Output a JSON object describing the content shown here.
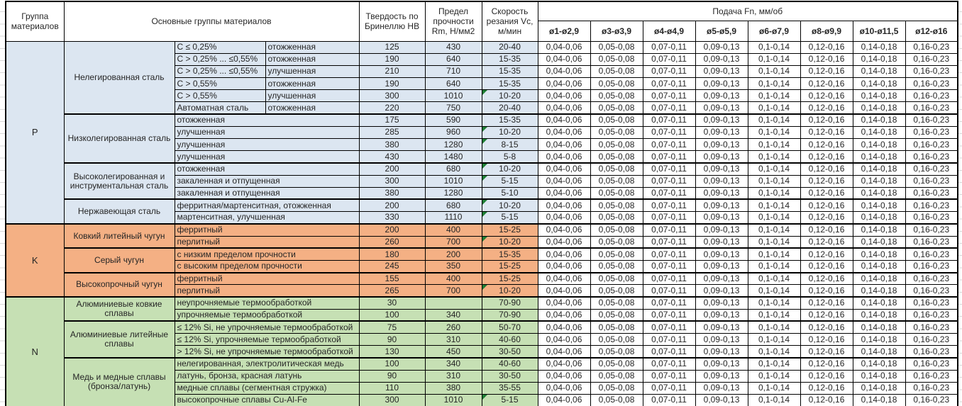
{
  "colors": {
    "group_p_fill": "#DCE6F1",
    "group_k_fill": "#F4B084",
    "group_n_fill": "#C6E0B4",
    "marker_green": "#1E7E34",
    "border": "#000000",
    "text": "#262626"
  },
  "header": {
    "group_col": "Группа материалов",
    "main_groups_col": "Основные группы материалов",
    "hardness_col": "Твердость по Бринеллю HB",
    "strength_col": "Предел прочности Rm, Н/мм2",
    "speed_col": "Скорость резания Vc, м/мин"
  },
  "feed": {
    "title": "Подача Fn, мм/об",
    "diameters": [
      "ø1-ø2,9",
      "ø3-ø3,9",
      "ø4-ø4,9",
      "ø5-ø5,9",
      "ø6-ø7,9",
      "ø8-ø9,9",
      "ø10-ø11,5",
      "ø12-ø16"
    ],
    "values": [
      "0,04-0,06",
      "0,05-0,08",
      "0,07-0,11",
      "0,09-0,13",
      "0,1-0,14",
      "0,12-0,16",
      "0,14-0,18",
      "0,16-0,23"
    ]
  },
  "groups": [
    {
      "code": "P",
      "key": "p",
      "subgroups": [
        {
          "name": "Нелегированная сталь",
          "rows": [
            {
              "c1": "C ≤ 0,25%",
              "c2": "отожженная",
              "hb": "125",
              "rm": "430",
              "vc": "20-40",
              "marker": false
            },
            {
              "c1": "C > 0,25% ... ≤0,55%",
              "c2": "отожженная",
              "hb": "190",
              "rm": "640",
              "vc": "15-35",
              "marker": false
            },
            {
              "c1": "C > 0,25% ... ≤0,55%",
              "c2": "улучшенная",
              "hb": "210",
              "rm": "710",
              "vc": "15-35",
              "marker": false
            },
            {
              "c1": "C > 0,55%",
              "c2": "отожженная",
              "hb": "190",
              "rm": "640",
              "vc": "15-35",
              "marker": false
            },
            {
              "c1": "C > 0,55%",
              "c2": "улучшенная",
              "hb": "300",
              "rm": "1010",
              "vc": "10-20",
              "marker": true
            },
            {
              "c1": "Автоматная сталь",
              "c2": "отожженная",
              "hb": "220",
              "rm": "750",
              "vc": "20-40",
              "marker": false
            }
          ]
        },
        {
          "name": "Низколегированная сталь",
          "rows": [
            {
              "c1": "отожженная",
              "hb": "175",
              "rm": "590",
              "vc": "15-35",
              "marker": false
            },
            {
              "c1": "улучшенная",
              "hb": "285",
              "rm": "960",
              "vc": "10-20",
              "marker": true
            },
            {
              "c1": "улучшенная",
              "hb": "380",
              "rm": "1280",
              "vc": "8-15",
              "marker": true
            },
            {
              "c1": "улучшенная",
              "hb": "430",
              "rm": "1480",
              "vc": "5-8",
              "marker": false
            }
          ]
        },
        {
          "name": "Высоколегированная и инструментальная сталь",
          "rows": [
            {
              "c1": "отожженная",
              "hb": "200",
              "rm": "680",
              "vc": "10-20",
              "marker": true
            },
            {
              "c1": "закаленная и отпущенная",
              "hb": "300",
              "rm": "1010",
              "vc": "5-15",
              "marker": true
            },
            {
              "c1": "закаленная и отпущенная",
              "hb": "380",
              "rm": "1280",
              "vc": "5-10",
              "marker": false
            }
          ]
        },
        {
          "name": "Нержавеющая сталь",
          "rows": [
            {
              "c1": "ферритная/мартенситная, отожженная",
              "hb": "200",
              "rm": "680",
              "vc": "10-20",
              "marker": true
            },
            {
              "c1": "мартенситная, улучшенная",
              "hb": "330",
              "rm": "1110",
              "vc": "5-15",
              "marker": true
            }
          ]
        }
      ]
    },
    {
      "code": "K",
      "key": "k",
      "subgroups": [
        {
          "name": "Ковкий литейный чугун",
          "rows": [
            {
              "c1": "ферритный",
              "hb": "200",
              "rm": "400",
              "vc": "15-25",
              "marker": false
            },
            {
              "c1": "перлитный",
              "hb": "260",
              "rm": "700",
              "vc": "10-20",
              "marker": true
            }
          ]
        },
        {
          "name": "Серый чугун",
          "rows": [
            {
              "c1": "с низким пределом прочности",
              "hb": "180",
              "rm": "200",
              "vc": "15-35",
              "marker": false
            },
            {
              "c1": "с высоким пределом прочности",
              "hb": "245",
              "rm": "350",
              "vc": "15-25",
              "marker": false
            }
          ]
        },
        {
          "name": "Высокопрочный чугун",
          "rows": [
            {
              "c1": "ферритный",
              "hb": "155",
              "rm": "400",
              "vc": "15-25",
              "marker": false
            },
            {
              "c1": "перлитный",
              "hb": "265",
              "rm": "700",
              "vc": "10-20",
              "marker": true
            }
          ]
        }
      ]
    },
    {
      "code": "N",
      "key": "n",
      "subgroups": [
        {
          "name": "Алюминиевые ковкие сплавы",
          "rows": [
            {
              "c1": "неупрочняемые термообработкой",
              "hb": "30",
              "rm": "",
              "vc": "70-90",
              "marker": false
            },
            {
              "c1": "упрочняемые термообработкой",
              "hb": "100",
              "rm": "340",
              "vc": "70-90",
              "marker": false
            }
          ]
        },
        {
          "name": "Алюминиевые литейные сплавы",
          "rows": [
            {
              "c1": "≤ 12% Si, не упрочняемые термообработкой",
              "hb": "75",
              "rm": "260",
              "vc": "50-70",
              "marker": false
            },
            {
              "c1": "≤ 12% Si, упрочняемые термообработкой",
              "hb": "90",
              "rm": "310",
              "vc": "40-60",
              "marker": false
            },
            {
              "c1": "> 12% Si, не упрочняемые термообработкой",
              "hb": "130",
              "rm": "450",
              "vc": "30-50",
              "marker": false
            }
          ]
        },
        {
          "name": "Медь и медные сплавы (бронза/латунь)",
          "rows": [
            {
              "c1": "нелегированная, электролитическая медь",
              "hb": "100",
              "rm": "340",
              "vc": "40-60",
              "marker": false
            },
            {
              "c1": "латунь, бронза, красная латунь",
              "hb": "90",
              "rm": "310",
              "vc": "30-50",
              "marker": false
            },
            {
              "c1": "медные сплавы (сегментная стружка)",
              "hb": "110",
              "rm": "380",
              "vc": "35-55",
              "marker": false
            },
            {
              "c1": "высокопрочные сплавы Cu-Al-Fe",
              "hb": "300",
              "rm": "1010",
              "vc": "5-15",
              "marker": true
            }
          ]
        }
      ]
    }
  ]
}
